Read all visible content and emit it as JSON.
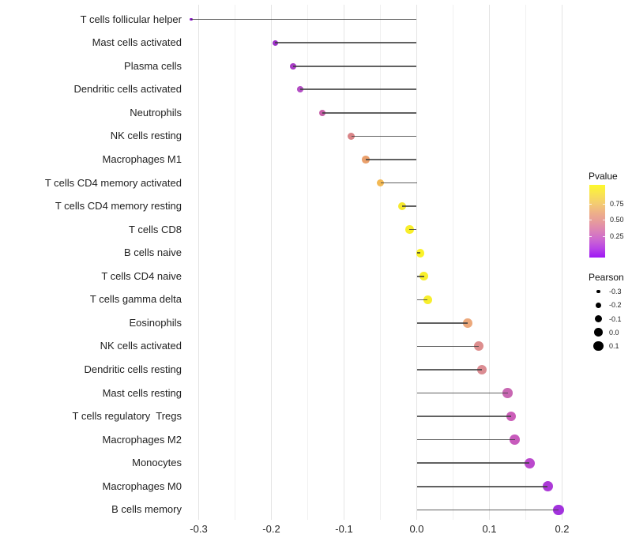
{
  "chart_data": {
    "type": "lollipop",
    "orientation": "horizontal",
    "title": "",
    "xlabel": "",
    "ylabel": "",
    "xlim": [
      -0.32,
      0.22
    ],
    "x_tick_values": [
      -0.3,
      -0.2,
      -0.1,
      0.0,
      0.1,
      0.2
    ],
    "x_ticks": [
      "-0.3",
      "-0.2",
      "-0.1",
      "0.0",
      "0.1",
      "0.2"
    ],
    "minor_grid_values": [
      -0.25,
      -0.15,
      -0.05,
      0.05,
      0.15
    ],
    "grid": "vertical gridlines only, no axis lines",
    "stem_color": "#3e3e3e",
    "size_encoding": "Pearson correlation (larger = higher)",
    "color_encoding": "Pvalue (yellow = high, violet = low)",
    "points": [
      {
        "label": "T cells follicular helper",
        "pearson": -0.31,
        "color": "#8814c8"
      },
      {
        "label": "Mast cells activated",
        "pearson": -0.195,
        "color": "#9c30c8"
      },
      {
        "label": "Plasma cells",
        "pearson": -0.17,
        "color": "#a83cc6"
      },
      {
        "label": "Dendritic cells activated",
        "pearson": -0.16,
        "color": "#b34ec4"
      },
      {
        "label": "Neutrophils",
        "pearson": -0.13,
        "color": "#c65fa8"
      },
      {
        "label": "NK cells resting",
        "pearson": -0.09,
        "color": "#d98487"
      },
      {
        "label": "Macrophages M1",
        "pearson": -0.07,
        "color": "#eaa06c"
      },
      {
        "label": "T cells CD4 memory activated",
        "pearson": -0.05,
        "color": "#f3b954"
      },
      {
        "label": "T cells CD4 memory resting",
        "pearson": -0.02,
        "color": "#f6e92e"
      },
      {
        "label": "T cells CD8",
        "pearson": -0.01,
        "color": "#f8ee2b"
      },
      {
        "label": "B cells naive",
        "pearson": 0.005,
        "color": "#faf228"
      },
      {
        "label": "T cells CD4 naive",
        "pearson": 0.01,
        "color": "#f8ef2a"
      },
      {
        "label": "T cells gamma delta",
        "pearson": 0.015,
        "color": "#f7ee2c"
      },
      {
        "label": "Eosinophils",
        "pearson": 0.07,
        "color": "#eca87b"
      },
      {
        "label": "NK cells activated",
        "pearson": 0.085,
        "color": "#dd8e8e"
      },
      {
        "label": "Dendritic cells resting",
        "pearson": 0.09,
        "color": "#db8c92"
      },
      {
        "label": "Mast cells resting",
        "pearson": 0.125,
        "color": "#c867b2"
      },
      {
        "label": "T cells regulatory  Tregs",
        "pearson": 0.13,
        "color": "#cb5eb8"
      },
      {
        "label": "Macrophages M2",
        "pearson": 0.135,
        "color": "#c75bbc"
      },
      {
        "label": "Monocytes",
        "pearson": 0.155,
        "color": "#bb49cd"
      },
      {
        "label": "Macrophages M0",
        "pearson": 0.18,
        "color": "#ac39d7"
      },
      {
        "label": "B cells memory",
        "pearson": 0.195,
        "color": "#a232dd"
      }
    ]
  },
  "legends": {
    "pvalue": {
      "title": "Pvalue",
      "tick_labels": [
        "0.75",
        "0.50",
        "0.25"
      ],
      "gradient_stops": [
        "#fdf92b",
        "#f9e351",
        "#f4cd70",
        "#eeb287",
        "#e79c9b",
        "#dc84b5",
        "#cd69d0",
        "#b944e6",
        "#9e17f4"
      ]
    },
    "pearson": {
      "title": "Pearson",
      "items": [
        {
          "label": "-0.3",
          "value": -0.3
        },
        {
          "label": "-0.2",
          "value": -0.2
        },
        {
          "label": "-0.1",
          "value": -0.1
        },
        {
          "label": "0.0",
          "value": 0.0
        },
        {
          "label": "0.1",
          "value": 0.1
        }
      ]
    }
  }
}
